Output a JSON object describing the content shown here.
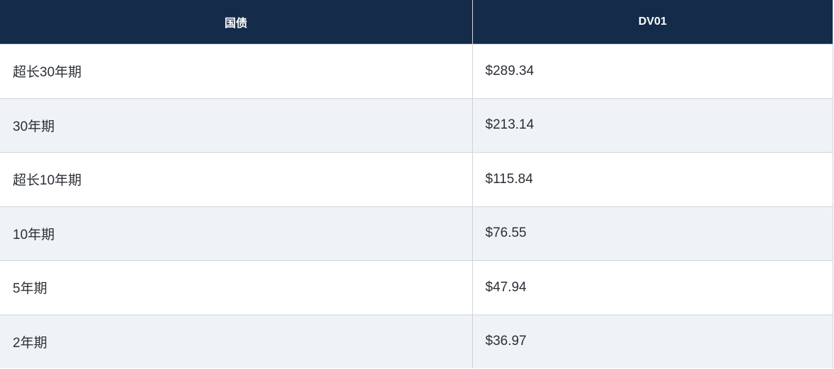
{
  "table": {
    "header": [
      "国债",
      "DV01"
    ],
    "rows": [
      [
        "超长30年期",
        "$289.34"
      ],
      [
        "30年期",
        "$213.14"
      ],
      [
        "超长10年期",
        "$115.84"
      ],
      [
        "10年期",
        "$76.55"
      ],
      [
        "5年期",
        "$47.94"
      ],
      [
        "2年期",
        "$36.97"
      ]
    ]
  }
}
